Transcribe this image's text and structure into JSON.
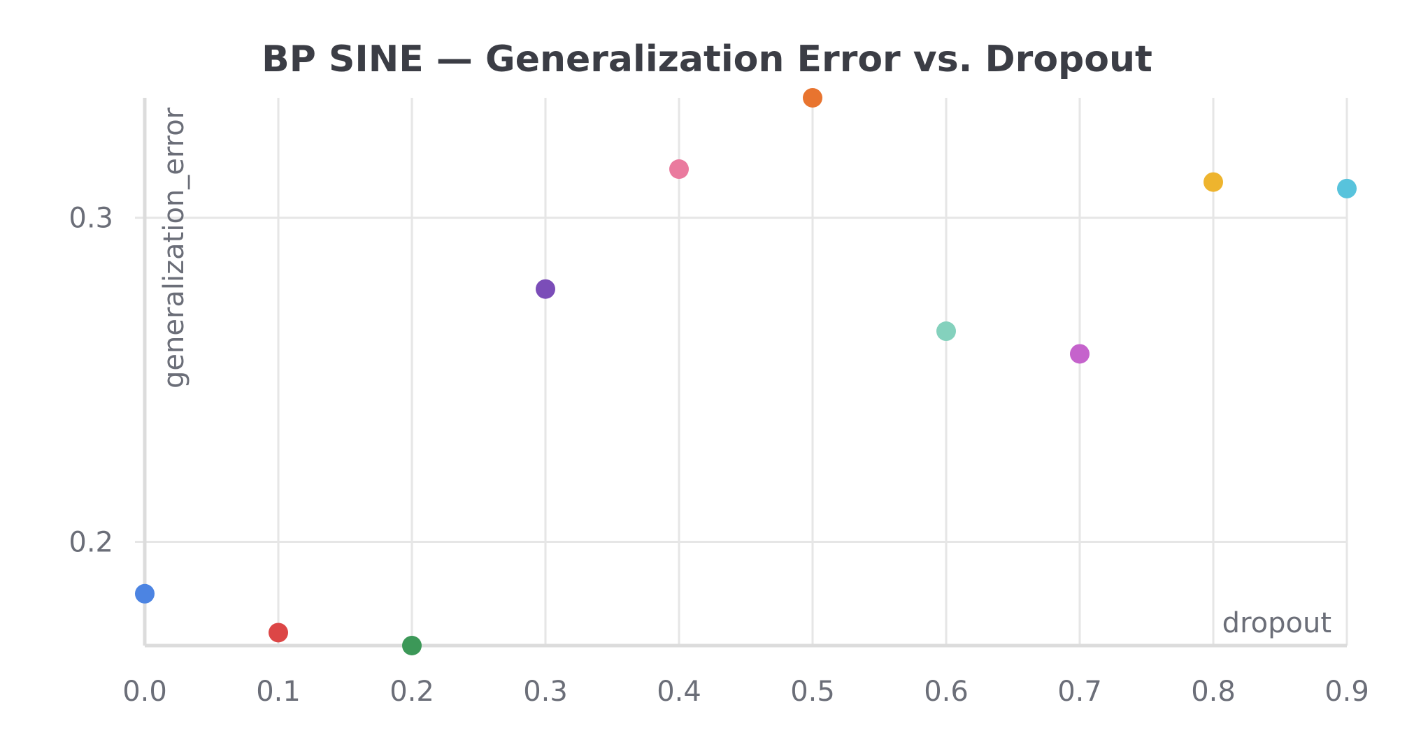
{
  "chart_data": {
    "type": "scatter",
    "title": "BP SINE — Generalization Error vs. Dropout",
    "xlabel": "dropout",
    "ylabel": "generalization_error",
    "xlim": [
      0.0,
      0.9
    ],
    "ylim": [
      0.168,
      0.337
    ],
    "x_ticks": [
      "0.0",
      "0.1",
      "0.2",
      "0.3",
      "0.4",
      "0.5",
      "0.6",
      "0.7",
      "0.8",
      "0.9"
    ],
    "y_ticks": [
      "0.2",
      "0.3"
    ],
    "grid": true,
    "points": [
      {
        "x": 0.0,
        "y": 0.184,
        "color": "#4c84e2"
      },
      {
        "x": 0.1,
        "y": 0.172,
        "color": "#dc4646"
      },
      {
        "x": 0.2,
        "y": 0.168,
        "color": "#3c9858"
      },
      {
        "x": 0.3,
        "y": 0.278,
        "color": "#7b4db8"
      },
      {
        "x": 0.4,
        "y": 0.315,
        "color": "#ea7a9e"
      },
      {
        "x": 0.5,
        "y": 0.337,
        "color": "#e8742f"
      },
      {
        "x": 0.6,
        "y": 0.265,
        "color": "#84d1bd"
      },
      {
        "x": 0.7,
        "y": 0.258,
        "color": "#c563cc"
      },
      {
        "x": 0.8,
        "y": 0.311,
        "color": "#eeb42e"
      },
      {
        "x": 0.9,
        "y": 0.309,
        "color": "#58c3dc"
      }
    ]
  }
}
